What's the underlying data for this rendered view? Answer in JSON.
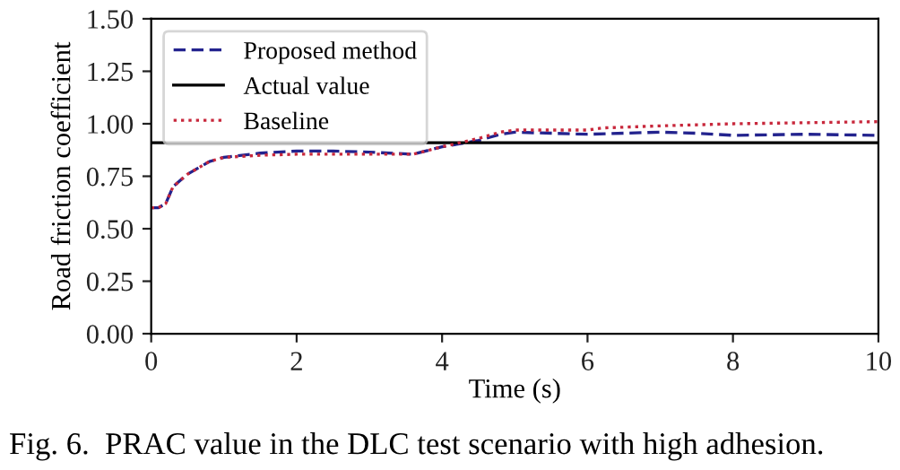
{
  "chart_data": {
    "type": "line",
    "xlabel": "Time (s)",
    "ylabel": "Road friction coefficient",
    "annotations": [
      "Fig. 6.  PRAC value in the DLC test scenario with high adhesion."
    ],
    "xlim": [
      0,
      10
    ],
    "ylim": [
      0,
      1.5
    ],
    "xticks": [
      0,
      2,
      4,
      6,
      8,
      10
    ],
    "yticks": [
      {
        "value": 0,
        "label": "0.00"
      },
      {
        "value": 0.25,
        "label": "0.25"
      },
      {
        "value": 0.5,
        "label": "0.50"
      },
      {
        "value": 0.75,
        "label": "0.75"
      },
      {
        "value": 1.0,
        "label": "1.00"
      },
      {
        "value": 1.25,
        "label": "1.25"
      },
      {
        "value": 1.5,
        "label": "1.50"
      }
    ],
    "grid": false,
    "legend": "top left",
    "series": [
      {
        "name": "Proposed method",
        "color": "#23238e",
        "line_style": "dashed",
        "x": [
          0,
          0.1,
          0.2,
          0.3,
          0.5,
          0.8,
          1.0,
          1.5,
          2,
          2.5,
          3,
          3.6,
          4,
          4.5,
          4.8,
          5,
          6,
          7,
          7.5,
          8,
          9,
          10
        ],
        "values": [
          0.6,
          0.6,
          0.62,
          0.7,
          0.76,
          0.82,
          0.84,
          0.86,
          0.87,
          0.87,
          0.865,
          0.855,
          0.89,
          0.92,
          0.95,
          0.96,
          0.95,
          0.96,
          0.955,
          0.945,
          0.95,
          0.945
        ]
      },
      {
        "name": "Actual value",
        "color": "#000000",
        "line_style": "solid",
        "x": [
          0,
          10
        ],
        "values": [
          0.91,
          0.91
        ]
      },
      {
        "name": "Baseline",
        "color": "#c8283c",
        "line_style": "dotted",
        "x": [
          0,
          0.1,
          0.2,
          0.3,
          0.5,
          0.8,
          1.0,
          1.5,
          2,
          2.5,
          3,
          3.6,
          4,
          4.5,
          4.8,
          5,
          6,
          6.2,
          7,
          8,
          9,
          10
        ],
        "values": [
          0.6,
          0.6,
          0.62,
          0.7,
          0.76,
          0.82,
          0.84,
          0.85,
          0.855,
          0.855,
          0.855,
          0.855,
          0.89,
          0.93,
          0.96,
          0.97,
          0.97,
          0.98,
          0.99,
          1.0,
          1.005,
          1.01
        ]
      }
    ]
  }
}
